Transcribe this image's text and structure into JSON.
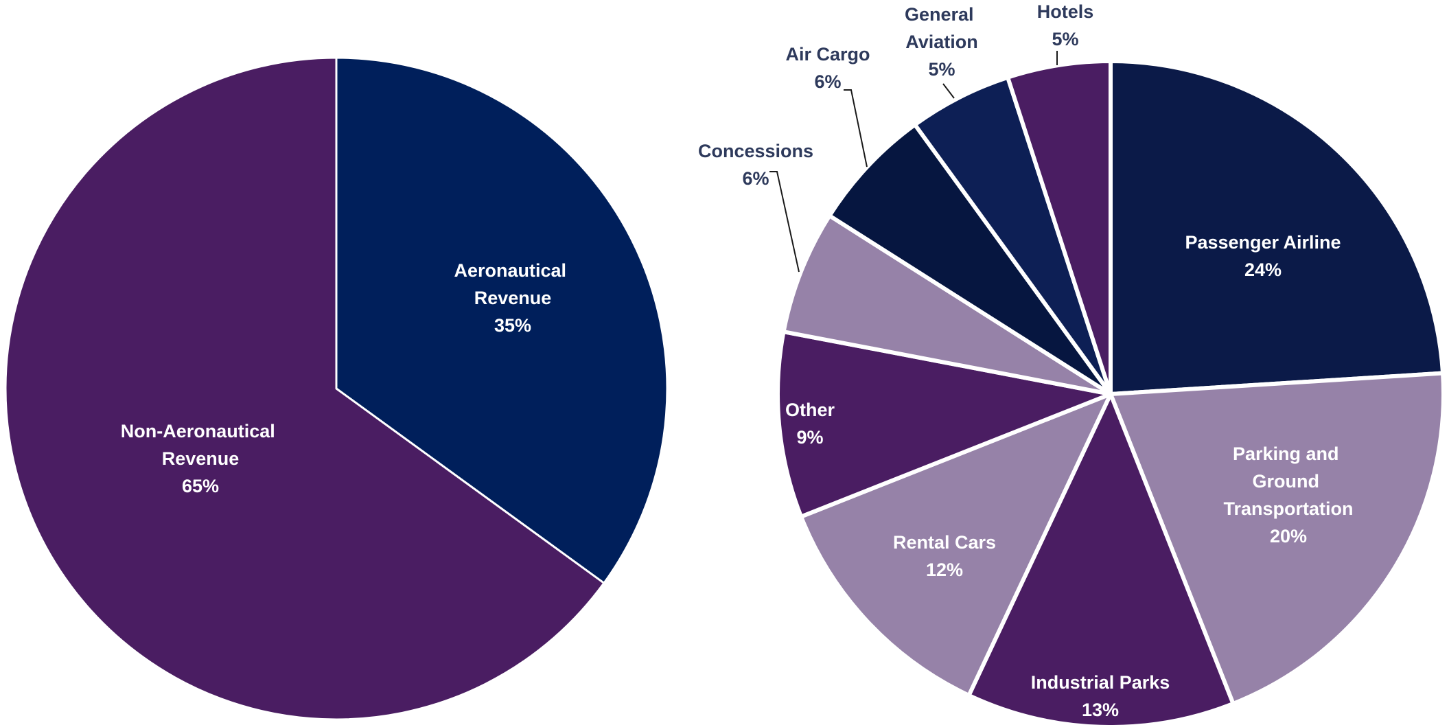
{
  "chart_data": [
    {
      "type": "pie",
      "categories": [
        "Aeronautical Revenue",
        "Non-Aeronautical Revenue"
      ],
      "values": [
        35,
        65
      ],
      "value_labels": [
        "35%",
        "65%"
      ],
      "colors": [
        "#001f5b",
        "#4a1d62"
      ]
    },
    {
      "type": "pie",
      "categories": [
        "Passenger Airline",
        "Parking and Ground Transportation",
        "Industrial Parks",
        "Rental Cars",
        "Other",
        "Concessions",
        "Air Cargo",
        "General Aviation",
        "Hotels"
      ],
      "values": [
        24,
        20,
        13,
        12,
        9,
        6,
        6,
        5,
        5
      ],
      "value_labels": [
        "24%",
        "20%",
        "13%",
        "12%",
        "9%",
        "6%",
        "6%",
        "5%",
        "5%"
      ],
      "colors": [
        "#0b1a48",
        "#9682a8",
        "#4a1d62",
        "#9682a8",
        "#4a1d62",
        "#9682a8",
        "#061640",
        "#0d1f55",
        "#4a1d62"
      ]
    }
  ]
}
